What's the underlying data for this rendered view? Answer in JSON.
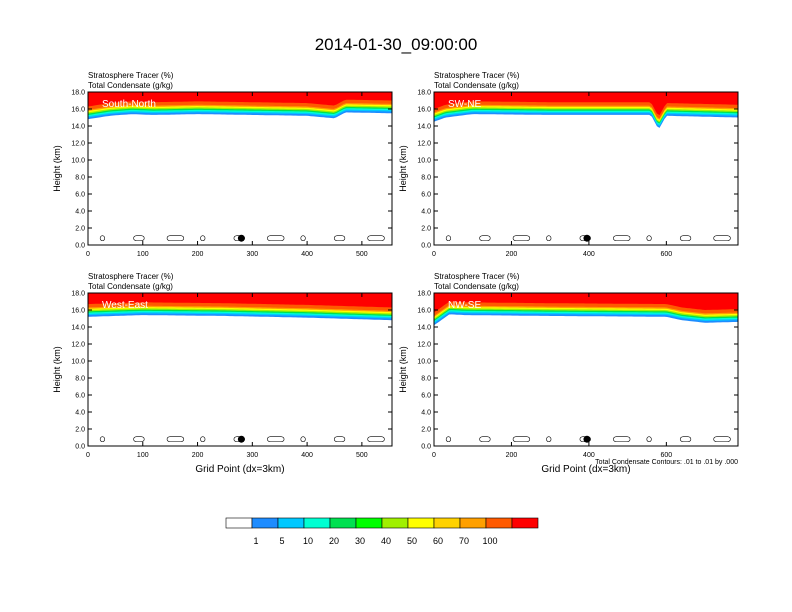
{
  "title": "2014-01-30_09:00:00",
  "colorbar": {
    "colors": [
      "#ffffff",
      "#1e8cff",
      "#00c8ff",
      "#00ffd2",
      "#00e050",
      "#00ff00",
      "#a0f000",
      "#ffff00",
      "#ffd200",
      "#ffa000",
      "#ff5a00",
      "#ff0000"
    ],
    "labels": [
      "1",
      "5",
      "10",
      "20",
      "30",
      "40",
      "50",
      "60",
      "70",
      "100"
    ]
  },
  "contour_note": "Total Condensate Contours: .01 to .01 by .000",
  "chart_data": [
    {
      "type": "heatmap",
      "panel": "top-left",
      "label": "South-North",
      "subtitle_left": "Stratosphere Tracer   (%)",
      "subtitle_left2": "Total Condensate   (g/kg)",
      "xlabel": "",
      "ylabel": "Height (km)",
      "xlim": [
        0,
        555
      ],
      "xticks": [
        0,
        100,
        200,
        300,
        400,
        500
      ],
      "ylim": [
        0,
        18
      ],
      "yticks": [
        "0.0",
        "2.0",
        "4.0",
        "6.0",
        "8.0",
        "10.0",
        "12.0",
        "14.0",
        "16.0",
        "18.0"
      ],
      "tracer_base_km": [
        [
          0,
          14.8
        ],
        [
          40,
          15.2
        ],
        [
          80,
          15.4
        ],
        [
          120,
          15.3
        ],
        [
          200,
          15.4
        ],
        [
          300,
          15.3
        ],
        [
          400,
          15.2
        ],
        [
          450,
          14.9
        ],
        [
          470,
          15.6
        ],
        [
          555,
          15.5
        ]
      ],
      "marker": {
        "x": 280,
        "y": 0.8
      }
    },
    {
      "type": "heatmap",
      "panel": "top-right",
      "label": "SW-NE",
      "subtitle_left": "Stratosphere Tracer   (%)",
      "subtitle_left2": "Total Condensate   (g/kg)",
      "xlabel": "",
      "ylabel": "Height (km)",
      "xlim": [
        0,
        785
      ],
      "xticks": [
        0,
        200,
        400,
        600
      ],
      "ylim": [
        0,
        18
      ],
      "yticks": [
        "0.0",
        "2.0",
        "4.0",
        "6.0",
        "8.0",
        "10.0",
        "12.0",
        "14.0",
        "16.0",
        "18.0"
      ],
      "tracer_base_km": [
        [
          0,
          14.5
        ],
        [
          30,
          15.0
        ],
        [
          100,
          15.4
        ],
        [
          300,
          15.3
        ],
        [
          560,
          15.3
        ],
        [
          580,
          13.6
        ],
        [
          600,
          15.2
        ],
        [
          785,
          15.0
        ]
      ],
      "marker": {
        "x": 395,
        "y": 0.8
      }
    },
    {
      "type": "heatmap",
      "panel": "bottom-left",
      "label": "West-East",
      "subtitle_left": "Stratosphere Tracer   (%)",
      "subtitle_left2": "Total Condensate   (g/kg)",
      "xlabel": "Grid Point (dx=3km)",
      "ylabel": "Height (km)",
      "xlim": [
        0,
        555
      ],
      "xticks": [
        0,
        100,
        200,
        300,
        400,
        500
      ],
      "ylim": [
        0,
        18
      ],
      "yticks": [
        "0.0",
        "2.0",
        "4.0",
        "6.0",
        "8.0",
        "10.0",
        "12.0",
        "14.0",
        "16.0",
        "18.0"
      ],
      "tracer_base_km": [
        [
          0,
          15.2
        ],
        [
          100,
          15.4
        ],
        [
          250,
          15.3
        ],
        [
          400,
          15.1
        ],
        [
          555,
          14.8
        ]
      ],
      "marker": {
        "x": 280,
        "y": 0.8
      }
    },
    {
      "type": "heatmap",
      "panel": "bottom-right",
      "label": "NW-SE",
      "subtitle_left": "Stratosphere Tracer   (%)",
      "subtitle_left2": "Total Condensate   (g/kg)",
      "xlabel": "Grid Point (dx=3km)",
      "ylabel": "Height (km)",
      "xlim": [
        0,
        785
      ],
      "xticks": [
        0,
        200,
        400,
        600
      ],
      "ylim": [
        0,
        18
      ],
      "yticks": [
        "0.0",
        "2.0",
        "4.0",
        "6.0",
        "8.0",
        "10.0",
        "12.0",
        "14.0",
        "16.0",
        "18.0"
      ],
      "tracer_base_km": [
        [
          0,
          14.2
        ],
        [
          40,
          15.5
        ],
        [
          80,
          15.4
        ],
        [
          300,
          15.3
        ],
        [
          600,
          15.2
        ],
        [
          640,
          14.8
        ],
        [
          700,
          14.5
        ],
        [
          785,
          14.6
        ]
      ],
      "marker": {
        "x": 395,
        "y": 0.8
      }
    }
  ]
}
